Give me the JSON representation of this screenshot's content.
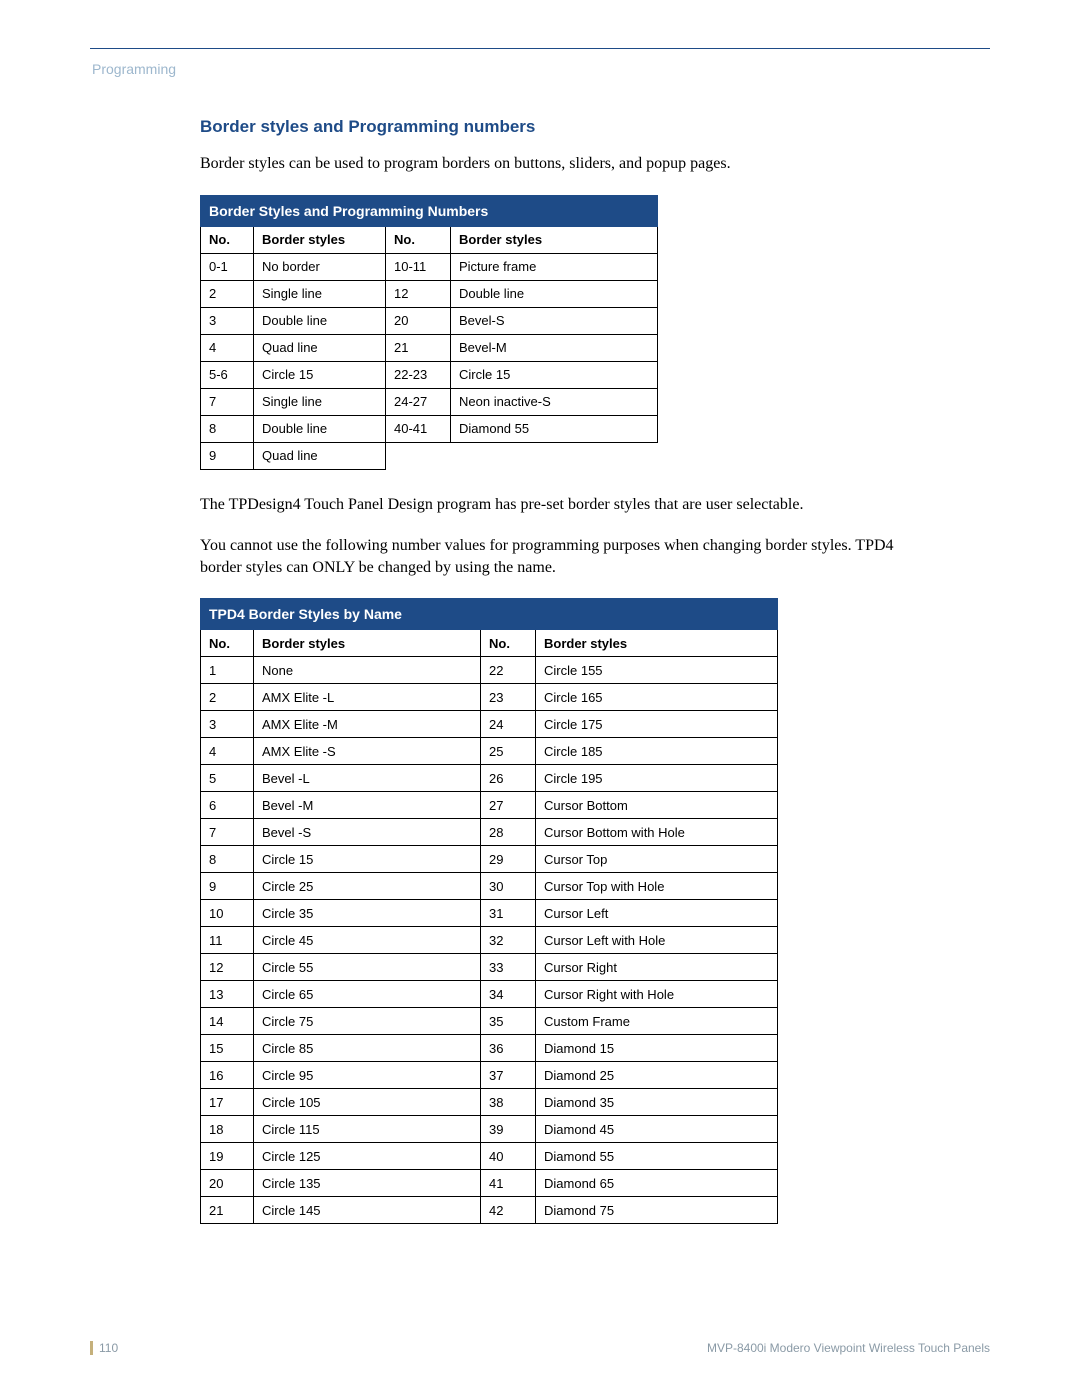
{
  "header": {
    "section": "Programming"
  },
  "section_title": "Border styles and Programming numbers",
  "intro_text": "Border styles can be used to program borders on buttons, sliders, and popup pages.",
  "table1": {
    "title": "Border Styles and Programming Numbers",
    "head": {
      "no": "No.",
      "style": "Border styles"
    },
    "rows": [
      {
        "n1": "0-1",
        "s1": "No border",
        "n2": "10-11",
        "s2": "Picture frame"
      },
      {
        "n1": "2",
        "s1": "Single line",
        "n2": "12",
        "s2": "Double line"
      },
      {
        "n1": "3",
        "s1": "Double line",
        "n2": "20",
        "s2": "Bevel-S"
      },
      {
        "n1": "4",
        "s1": "Quad line",
        "n2": "21",
        "s2": "Bevel-M"
      },
      {
        "n1": "5-6",
        "s1": "Circle 15",
        "n2": "22-23",
        "s2": "Circle 15"
      },
      {
        "n1": "7",
        "s1": "Single line",
        "n2": "24-27",
        "s2": "Neon inactive-S"
      },
      {
        "n1": "8",
        "s1": "Double line",
        "n2": "40-41",
        "s2": "Diamond 55"
      },
      {
        "n1": "9",
        "s1": "Quad line",
        "n2": "",
        "s2": ""
      }
    ]
  },
  "mid_text1": "The TPDesign4 Touch Panel Design program has pre-set border styles that are user selectable.",
  "mid_text2": "You cannot use the following number values for programming purposes when changing border styles. TPD4 border styles can ONLY be changed by using the name.",
  "table2": {
    "title": "TPD4 Border Styles by Name",
    "head": {
      "no": "No.",
      "style": "Border styles"
    },
    "rows": [
      {
        "n1": "1",
        "s1": "None",
        "n2": "22",
        "s2": "Circle 155"
      },
      {
        "n1": "2",
        "s1": "AMX Elite -L",
        "n2": "23",
        "s2": "Circle 165"
      },
      {
        "n1": "3",
        "s1": "AMX Elite -M",
        "n2": "24",
        "s2": "Circle 175"
      },
      {
        "n1": "4",
        "s1": "AMX Elite -S",
        "n2": "25",
        "s2": "Circle 185"
      },
      {
        "n1": "5",
        "s1": "Bevel -L",
        "n2": "26",
        "s2": "Circle 195"
      },
      {
        "n1": "6",
        "s1": "Bevel -M",
        "n2": "27",
        "s2": "Cursor Bottom"
      },
      {
        "n1": "7",
        "s1": "Bevel -S",
        "n2": "28",
        "s2": "Cursor Bottom with Hole"
      },
      {
        "n1": "8",
        "s1": "Circle 15",
        "n2": "29",
        "s2": "Cursor Top"
      },
      {
        "n1": "9",
        "s1": "Circle 25",
        "n2": "30",
        "s2": "Cursor Top with Hole"
      },
      {
        "n1": "10",
        "s1": "Circle 35",
        "n2": "31",
        "s2": "Cursor Left"
      },
      {
        "n1": "11",
        "s1": "Circle 45",
        "n2": "32",
        "s2": "Cursor Left with Hole"
      },
      {
        "n1": "12",
        "s1": "Circle 55",
        "n2": "33",
        "s2": "Cursor Right"
      },
      {
        "n1": "13",
        "s1": "Circle 65",
        "n2": "34",
        "s2": "Cursor Right with Hole"
      },
      {
        "n1": "14",
        "s1": "Circle 75",
        "n2": "35",
        "s2": "Custom Frame"
      },
      {
        "n1": "15",
        "s1": "Circle 85",
        "n2": "36",
        "s2": "Diamond 15"
      },
      {
        "n1": "16",
        "s1": "Circle 95",
        "n2": "37",
        "s2": "Diamond 25"
      },
      {
        "n1": "17",
        "s1": "Circle 105",
        "n2": "38",
        "s2": "Diamond 35"
      },
      {
        "n1": "18",
        "s1": "Circle 115",
        "n2": "39",
        "s2": "Diamond 45"
      },
      {
        "n1": "19",
        "s1": "Circle 125",
        "n2": "40",
        "s2": "Diamond 55"
      },
      {
        "n1": "20",
        "s1": "Circle 135",
        "n2": "41",
        "s2": "Diamond 65"
      },
      {
        "n1": "21",
        "s1": "Circle 145",
        "n2": "42",
        "s2": "Diamond 75"
      }
    ]
  },
  "footer": {
    "page_number": "110",
    "doc_title": "MVP-8400i Modero Viewpoint Wireless Touch Panels"
  },
  "colors": {
    "brand_blue": "#1e4b87",
    "muted_blue": "#9db7cd",
    "footer_grey": "#8a9aa6",
    "accent_gold": "#c5b07b"
  }
}
